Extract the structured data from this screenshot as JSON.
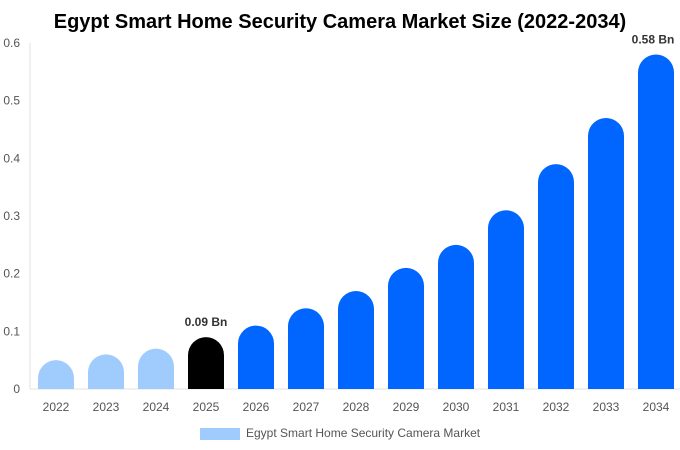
{
  "chart_data": {
    "type": "bar",
    "title": "Egypt Smart Home Security Camera Market Size (2022-2034)",
    "categories": [
      "2022",
      "2023",
      "2024",
      "2025",
      "2026",
      "2027",
      "2028",
      "2029",
      "2030",
      "2031",
      "2032",
      "2033",
      "2034"
    ],
    "series": [
      {
        "name": "Egypt Smart Home Security Camera Market",
        "values": [
          0.05,
          0.06,
          0.07,
          0.09,
          0.11,
          0.14,
          0.17,
          0.21,
          0.25,
          0.31,
          0.39,
          0.47,
          0.58
        ]
      }
    ],
    "data_labels": [
      {
        "category": "2025",
        "text": "0.09 Bn"
      },
      {
        "category": "2034",
        "text": "0.58 Bn"
      }
    ],
    "ylim": [
      0,
      0.6
    ],
    "yticks": [
      "0",
      "0.1",
      "0.2",
      "0.3",
      "0.4",
      "0.5",
      "0.6"
    ],
    "xlabel": "",
    "ylabel": "",
    "grid": false,
    "legend_position": "bottom",
    "colors": {
      "historical": "#a0cbfd",
      "current": "#000000",
      "forecast": "#0066ff"
    }
  }
}
